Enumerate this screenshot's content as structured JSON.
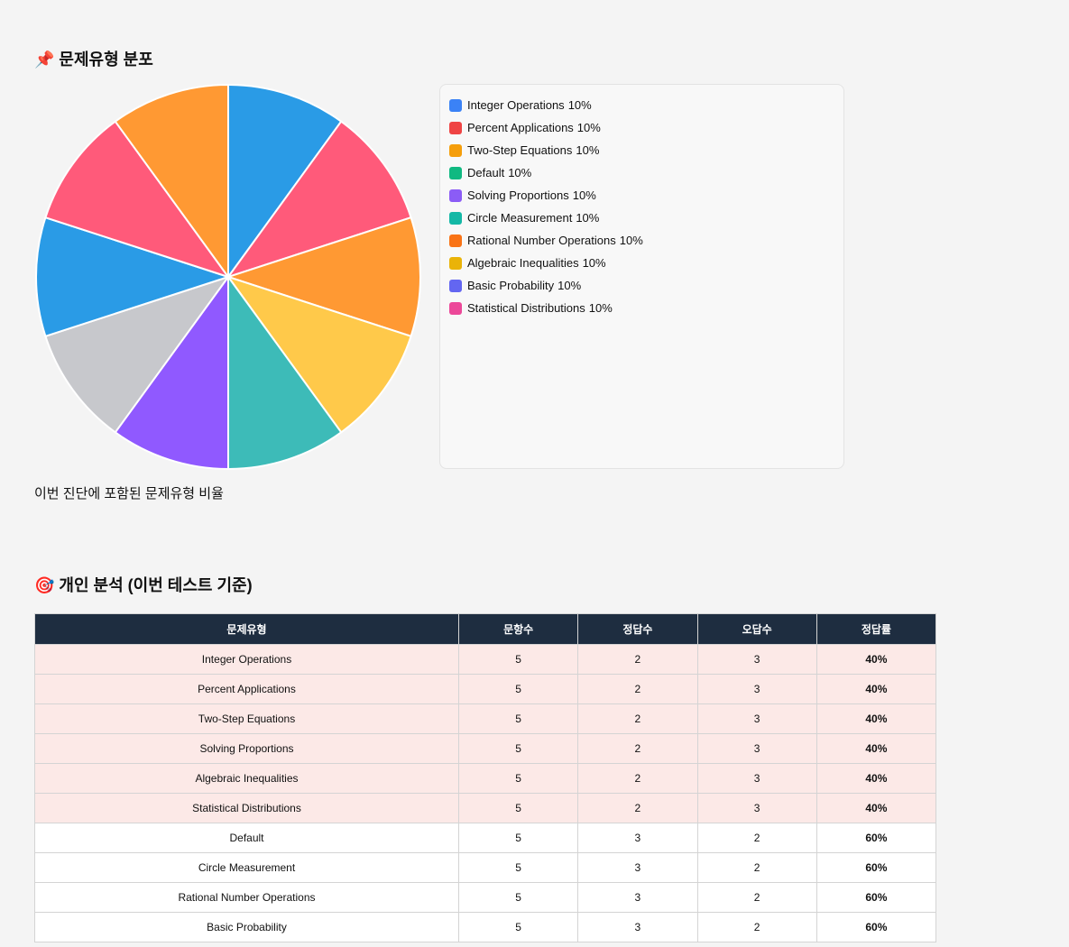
{
  "distribution": {
    "title": "📌 문제유형 분포",
    "caption": "이번 진단에 포함된 문제유형 비율"
  },
  "chart_data": {
    "type": "pie",
    "categories": [
      "Integer Operations",
      "Percent Applications",
      "Two-Step Equations",
      "Default",
      "Solving Proportions",
      "Circle Measurement",
      "Rational Number Operations",
      "Algebraic Inequalities",
      "Basic Probability",
      "Statistical Distributions"
    ],
    "values": [
      10,
      10,
      10,
      10,
      10,
      10,
      10,
      10,
      10,
      10
    ],
    "value_labels": [
      "10%",
      "10%",
      "10%",
      "10%",
      "10%",
      "10%",
      "10%",
      "10%",
      "10%",
      "10%"
    ],
    "colors": [
      "#2a9be6",
      "#ff5a7a",
      "#ff9933",
      "#ffc94a",
      "#3dbbb8",
      "#9059ff",
      "#c7c8cc",
      "#2a9be6",
      "#ff5a7a",
      "#ff9933"
    ],
    "legend_colors": [
      "#3b82f6",
      "#ef4444",
      "#f59e0b",
      "#10b981",
      "#8b5cf6",
      "#14b8a6",
      "#f97316",
      "#eab308",
      "#6366f1",
      "#ec4899"
    ]
  },
  "analysis": {
    "title": "🎯 개인 분석 (이번 테스트 기준)",
    "table": {
      "header": [
        "문제유형",
        "문항수",
        "정답수",
        "오답수",
        "정답률"
      ],
      "rows": [
        [
          "Integer Operations",
          5,
          2,
          3,
          "40%"
        ],
        [
          "Percent Applications",
          5,
          2,
          3,
          "40%"
        ],
        [
          "Two-Step Equations",
          5,
          2,
          3,
          "40%"
        ],
        [
          "Solving Proportions",
          5,
          2,
          3,
          "40%"
        ],
        [
          "Algebraic Inequalities",
          5,
          2,
          3,
          "40%"
        ],
        [
          "Statistical Distributions",
          5,
          2,
          3,
          "40%"
        ],
        [
          "Default",
          5,
          3,
          2,
          "60%"
        ],
        [
          "Circle Measurement",
          5,
          3,
          2,
          "60%"
        ],
        [
          "Rational Number Operations",
          5,
          3,
          2,
          "60%"
        ],
        [
          "Basic Probability",
          5,
          3,
          2,
          "60%"
        ]
      ]
    }
  }
}
